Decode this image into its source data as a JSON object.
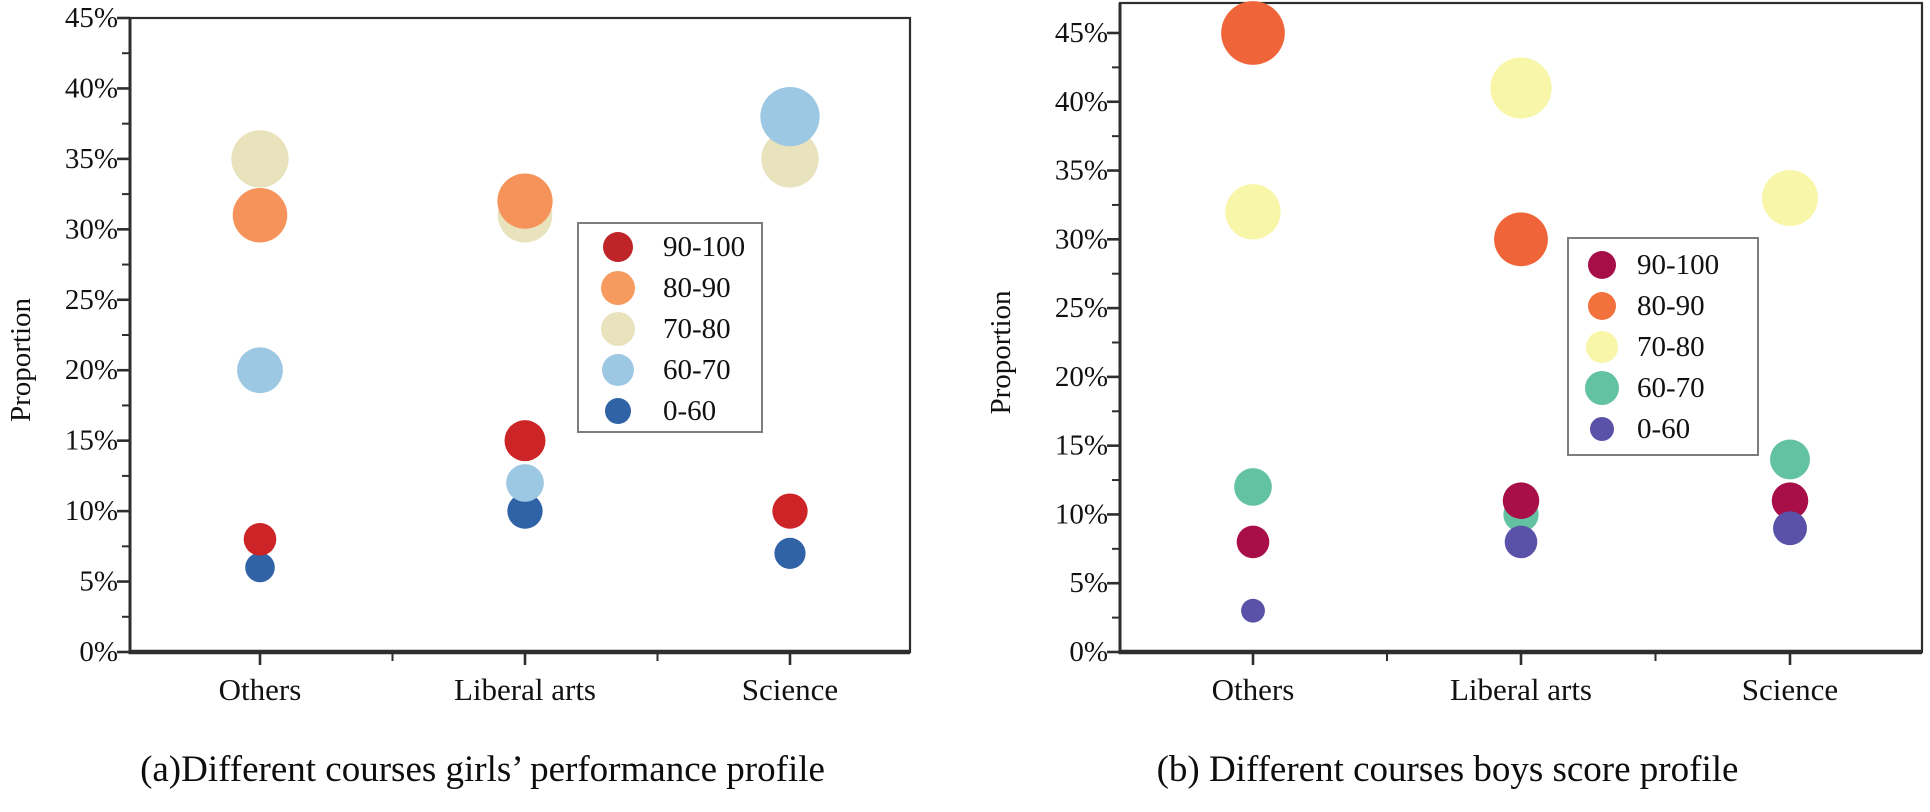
{
  "page": {
    "background": "#ffffff"
  },
  "chart_data": [
    {
      "type": "scatter",
      "subtype": "bubble",
      "caption": "(a)Different courses girls’ performance profile",
      "ylabel": "Proportion",
      "xlabel": "",
      "categories": [
        "Others",
        "Liberal arts",
        "Science"
      ],
      "y_ticks": [
        "0%",
        "5%",
        "10%",
        "15%",
        "20%",
        "25%",
        "30%",
        "35%",
        "40%",
        "45%"
      ],
      "ylim": [
        0,
        45
      ],
      "grid": false,
      "legend": {
        "position": "inside-right",
        "entries": [
          {
            "label": "90-100",
            "color": "#bf2428",
            "swatch_r": 15
          },
          {
            "label": "80-90",
            "color": "#f79a5e",
            "swatch_r": 17
          },
          {
            "label": "70-80",
            "color": "#e8e2bd",
            "swatch_r": 17
          },
          {
            "label": "60-70",
            "color": "#9cc8e4",
            "swatch_r": 16
          },
          {
            "label": "0-60",
            "color": "#3062a6",
            "swatch_r": 13
          }
        ]
      },
      "series": [
        {
          "name": "70-80",
          "color": "#e8e2bd",
          "values": [
            35,
            31,
            35
          ]
        },
        {
          "name": "80-90",
          "color": "#f6935a",
          "values": [
            31,
            32,
            null
          ]
        },
        {
          "name": "0-60",
          "color": "#3062a6",
          "values": [
            6,
            10,
            7
          ]
        },
        {
          "name": "60-70",
          "color": "#9cc8e4",
          "values": [
            20,
            12,
            38
          ]
        },
        {
          "name": "90-100",
          "color": "#cc2427",
          "values": [
            8,
            15,
            10
          ]
        }
      ]
    },
    {
      "type": "scatter",
      "subtype": "bubble",
      "caption": "(b) Different courses boys score profile",
      "ylabel": "Proportion",
      "xlabel": "",
      "categories": [
        "Others",
        "Liberal arts",
        "Science"
      ],
      "y_ticks": [
        "0%",
        "5%",
        "10%",
        "15%",
        "20%",
        "25%",
        "30%",
        "35%",
        "40%",
        "45%"
      ],
      "ylim": [
        0,
        45
      ],
      "grid": false,
      "legend": {
        "position": "inside-right",
        "entries": [
          {
            "label": "90-100",
            "color": "#a60e47",
            "swatch_r": 14
          },
          {
            "label": "80-90",
            "color": "#f2713c",
            "swatch_r": 14
          },
          {
            "label": "70-80",
            "color": "#f8f6a8",
            "swatch_r": 16
          },
          {
            "label": "60-70",
            "color": "#62c2a2",
            "swatch_r": 17
          },
          {
            "label": "0-60",
            "color": "#5a52a8",
            "swatch_r": 12
          }
        ]
      },
      "series": [
        {
          "name": "70-80",
          "color": "#f8f6a8",
          "values": [
            32,
            41,
            33
          ]
        },
        {
          "name": "80-90",
          "color": "#ef6539",
          "values": [
            45,
            30,
            null
          ]
        },
        {
          "name": "60-70",
          "color": "#62c2a2",
          "values": [
            12,
            10,
            14
          ]
        },
        {
          "name": "90-100",
          "color": "#a80e48",
          "values": [
            8,
            11,
            11
          ]
        },
        {
          "name": "0-60",
          "color": "#5a52a8",
          "values": [
            3,
            8,
            9
          ]
        }
      ]
    }
  ]
}
